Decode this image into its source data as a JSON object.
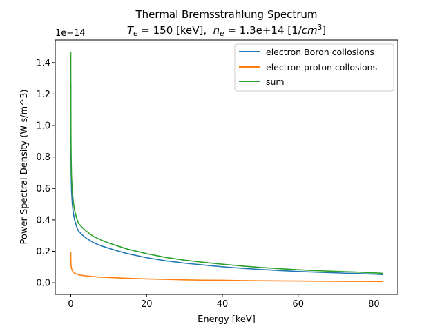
{
  "chart_data": {
    "type": "line",
    "title": "Thermal Bremsstrahlung Spectrum",
    "subtitle": {
      "te_symbol": "T",
      "te_subscript": "e",
      "te_rest": " = 150 [keV],  ",
      "ne_symbol": "n",
      "ne_subscript": "e",
      "ne_rest": " = 1.3e+14 [1/",
      "unit_cm": "cm",
      "unit_exp": "3",
      "unit_close": "]"
    },
    "xlabel": "Energy [keV]",
    "ylabel": "Power Spectral Density (W s/m^3)",
    "offset_text": "1e−14",
    "xlim": [
      -4.1,
      86.3
    ],
    "ylim": [
      -0.074,
      1.544
    ],
    "x_ticks": [
      0,
      20,
      40,
      60,
      80
    ],
    "x_tick_labels": [
      "0",
      "20",
      "40",
      "60",
      "80"
    ],
    "y_ticks": [
      0.0,
      0.2,
      0.4,
      0.6,
      0.8,
      1.0,
      1.2,
      1.4
    ],
    "y_tick_labels": [
      "0.0",
      "0.2",
      "0.4",
      "0.6",
      "0.8",
      "1.0",
      "1.2",
      "1.4"
    ],
    "y_scale_factor": "1e-14",
    "grid": false,
    "legend_position": "top-right",
    "series": [
      {
        "name": "electron Boron collosions",
        "color": "#1f77b4",
        "x": [
          0.0,
          0.02,
          0.05,
          0.1,
          0.2,
          0.4,
          0.7,
          1.0,
          1.5,
          2.0,
          3.0,
          4.0,
          5.0,
          6.0,
          8.0,
          10.0,
          12.0,
          15.0,
          20.0,
          25.0,
          30.0,
          35.0,
          40.0,
          45.0,
          50.0,
          55.0,
          60.0,
          65.0,
          70.0,
          75.0,
          80.0,
          82.3
        ],
        "y": [
          1.27,
          0.95,
          0.81,
          0.69,
          0.59,
          0.5,
          0.44,
          0.4,
          0.36,
          0.33,
          0.305,
          0.285,
          0.27,
          0.255,
          0.235,
          0.22,
          0.205,
          0.185,
          0.16,
          0.14,
          0.125,
          0.113,
          0.102,
          0.093,
          0.085,
          0.078,
          0.072,
          0.067,
          0.063,
          0.059,
          0.055,
          0.052
        ]
      },
      {
        "name": "electron proton collosions",
        "color": "#ff7f0e",
        "x": [
          0.0,
          0.02,
          0.05,
          0.1,
          0.2,
          0.4,
          0.7,
          1.0,
          1.5,
          2.0,
          3.0,
          4.0,
          5.0,
          6.0,
          8.0,
          10.0,
          12.0,
          15.0,
          20.0,
          25.0,
          30.0,
          35.0,
          40.0,
          45.0,
          50.0,
          55.0,
          60.0,
          65.0,
          70.0,
          75.0,
          80.0,
          82.3
        ],
        "y": [
          0.195,
          0.146,
          0.125,
          0.106,
          0.091,
          0.077,
          0.068,
          0.062,
          0.056,
          0.051,
          0.047,
          0.044,
          0.042,
          0.039,
          0.036,
          0.034,
          0.032,
          0.029,
          0.025,
          0.022,
          0.019,
          0.017,
          0.016,
          0.014,
          0.013,
          0.012,
          0.011,
          0.01,
          0.0097,
          0.0091,
          0.0085,
          0.008
        ]
      },
      {
        "name": "sum",
        "color": "#2ca02c",
        "x": [
          0.0,
          0.02,
          0.05,
          0.1,
          0.2,
          0.4,
          0.7,
          1.0,
          1.5,
          2.0,
          3.0,
          4.0,
          5.0,
          6.0,
          8.0,
          10.0,
          12.0,
          15.0,
          20.0,
          25.0,
          30.0,
          35.0,
          40.0,
          45.0,
          50.0,
          55.0,
          60.0,
          65.0,
          70.0,
          75.0,
          80.0,
          82.3
        ],
        "y": [
          1.465,
          1.1,
          0.94,
          0.8,
          0.68,
          0.58,
          0.51,
          0.46,
          0.415,
          0.38,
          0.352,
          0.33,
          0.312,
          0.295,
          0.272,
          0.253,
          0.237,
          0.214,
          0.185,
          0.162,
          0.144,
          0.13,
          0.118,
          0.107,
          0.098,
          0.09,
          0.083,
          0.077,
          0.0727,
          0.0681,
          0.0635,
          0.06
        ]
      }
    ]
  }
}
